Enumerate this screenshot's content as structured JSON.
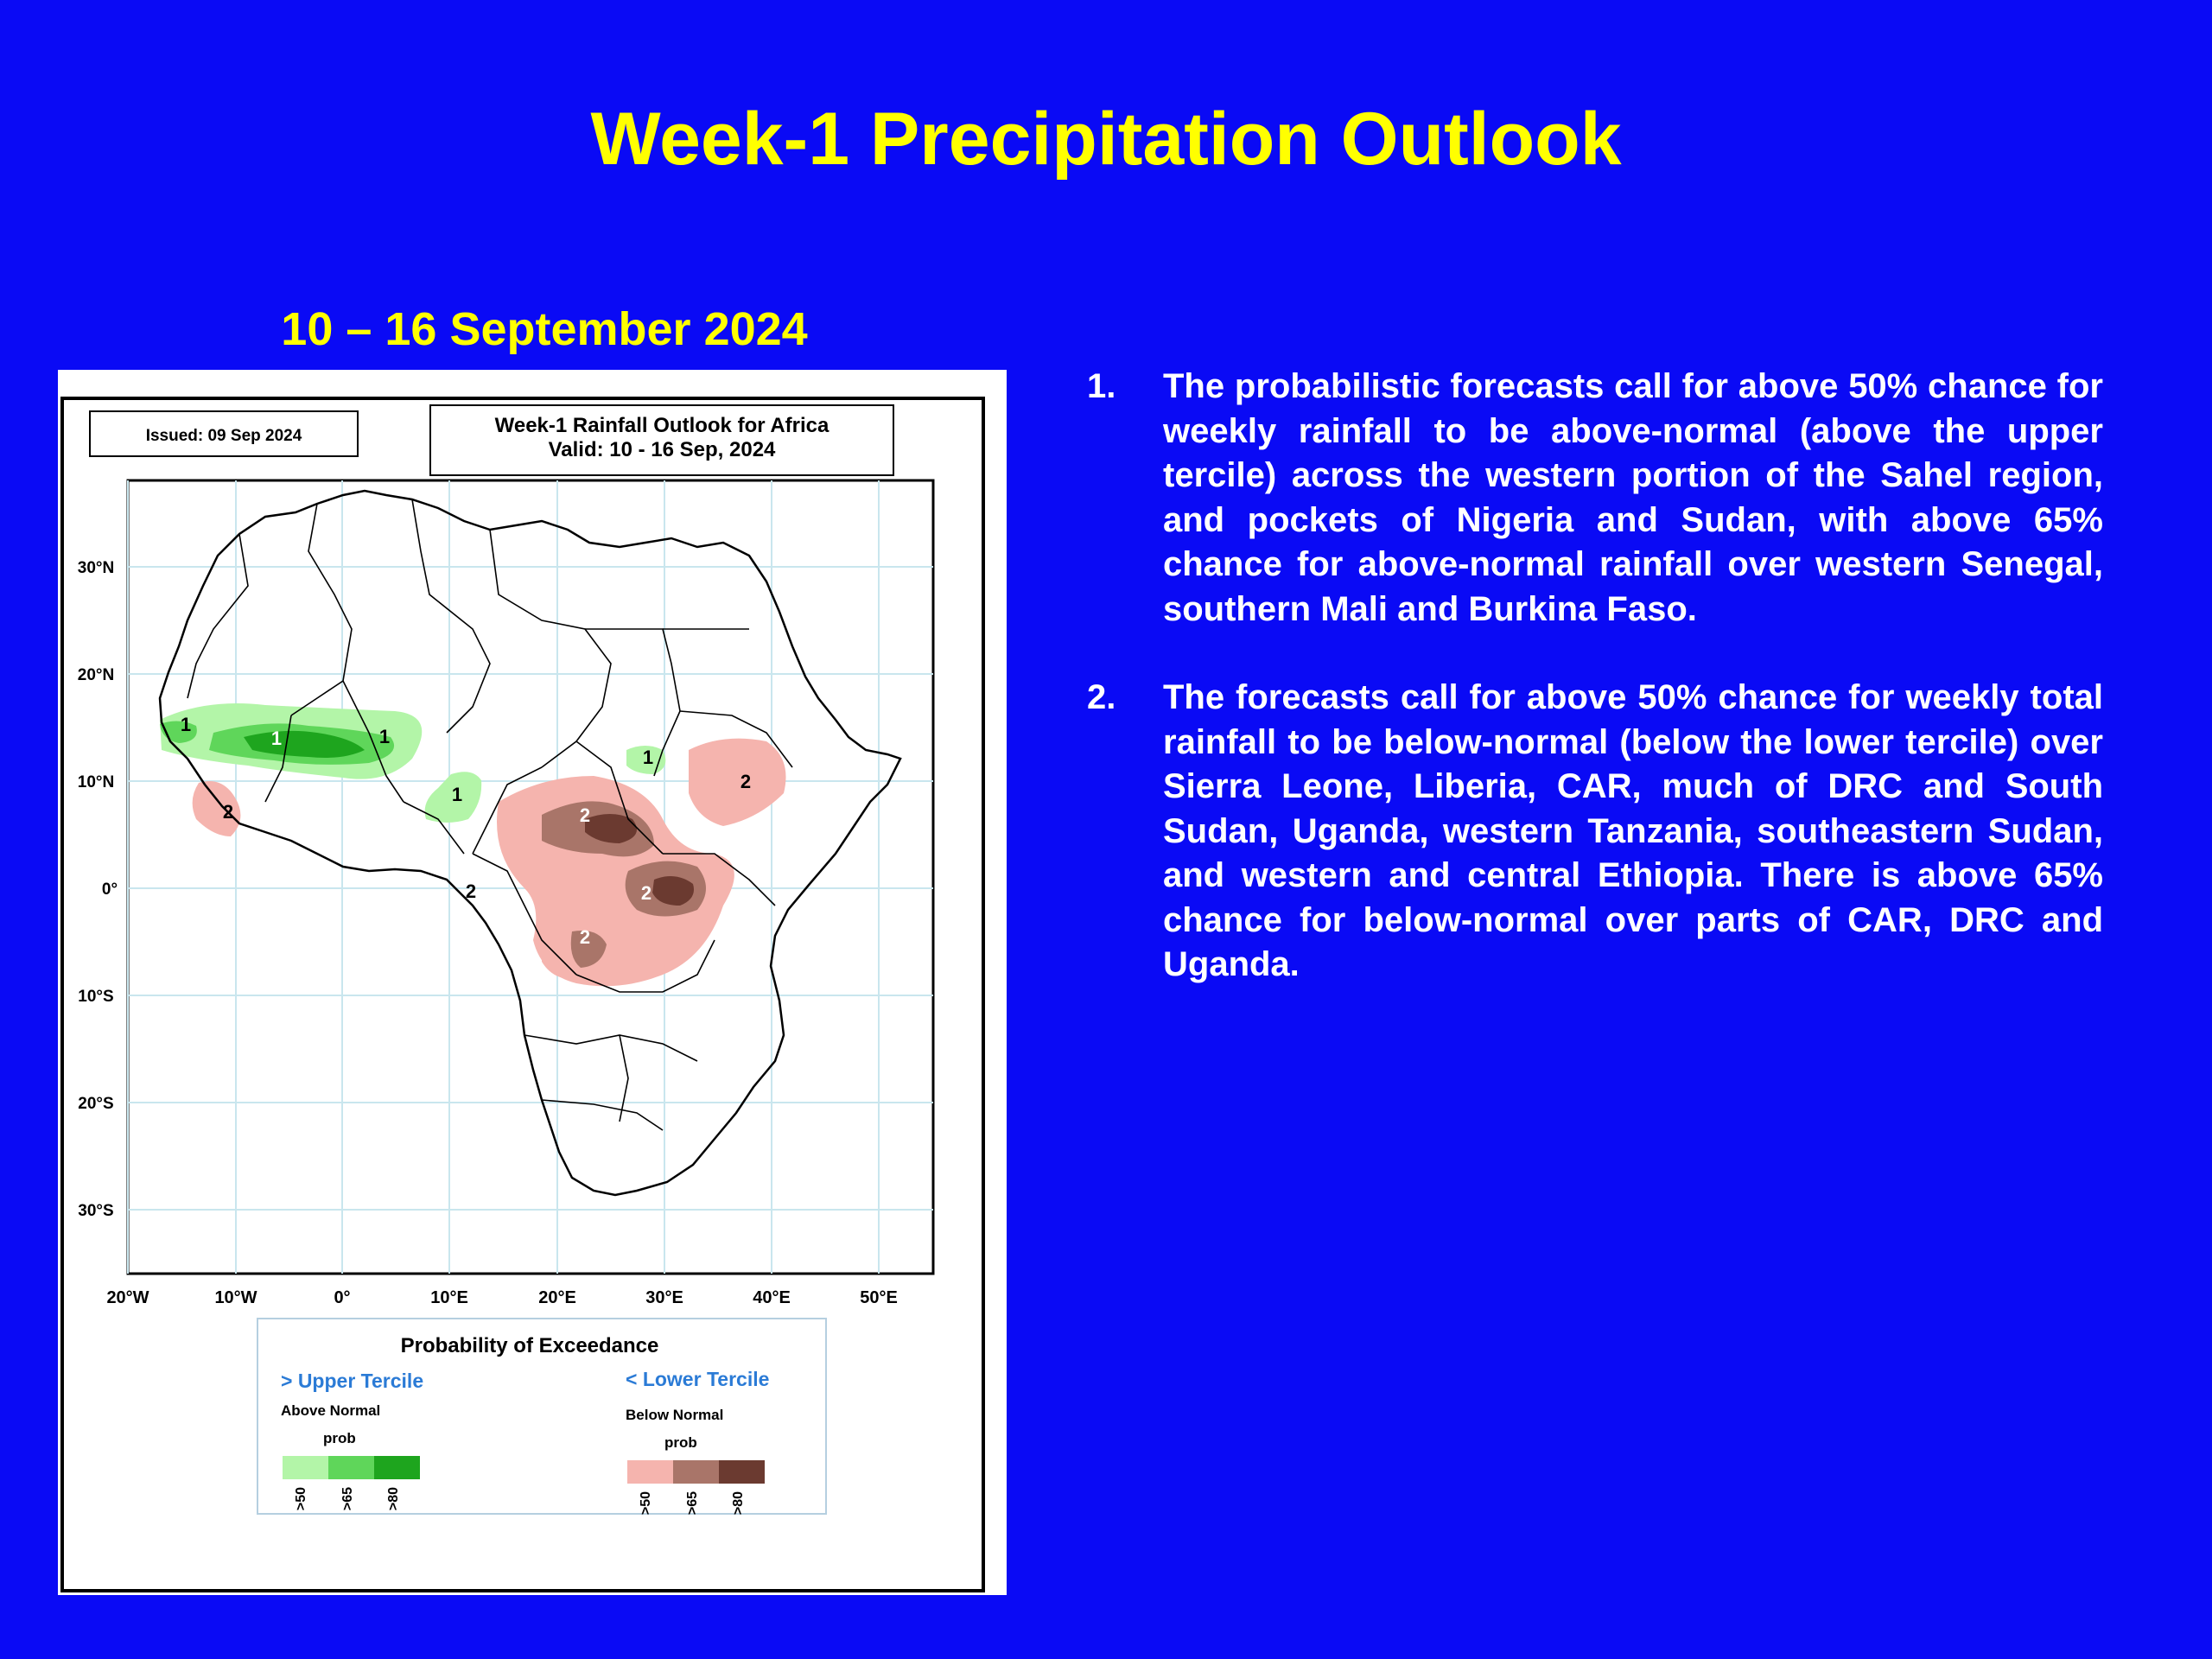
{
  "slide": {
    "title": "Week-1 Precipitation Outlook",
    "date_range": "10 – 16 September 2024"
  },
  "map": {
    "issued": "Issued: 09 Sep 2024",
    "header_line1": "Week-1 Rainfall Outlook for Africa",
    "header_line2": "Valid: 10 - 16 Sep, 2024",
    "lat_labels": [
      "30°N",
      "20°N",
      "10°N",
      "0°",
      "10°S",
      "20°S",
      "30°S"
    ],
    "lon_labels": [
      "20°W",
      "10°W",
      "0°",
      "10°E",
      "20°E",
      "30°E",
      "40°E",
      "50°E"
    ],
    "region_labels": [
      "1",
      "1",
      "1",
      "1",
      "1",
      "2",
      "2",
      "2",
      "2",
      "2",
      "2"
    ],
    "colors": {
      "above_50": "#b3f5a8",
      "above_65": "#5fd65a",
      "above_80": "#1ea51e",
      "below_50": "#f5b4ae",
      "below_65": "#a97569",
      "below_80": "#6b3a30"
    },
    "legend": {
      "title": "Probability of Exceedance",
      "upper_title": "> Upper Tercile",
      "upper_sub": "Above Normal",
      "upper_prob": "prob",
      "lower_title": "< Lower Tercile",
      "lower_sub": "Below Normal",
      "lower_prob": "prob",
      "thresholds": [
        ">50",
        ">65",
        ">80"
      ]
    }
  },
  "notes": [
    {
      "number": "1.",
      "text": "The probabilistic forecasts call for above 50% chance for weekly rainfall to be above-normal (above the upper tercile) across the western portion of the Sahel region, and pockets of Nigeria and Sudan, with above 65% chance for above-normal rainfall over western Senegal, southern Mali and Burkina Faso."
    },
    {
      "number": "2.",
      "text": "The forecasts call for above 50% chance for weekly total rainfall to be below-normal (below the lower tercile) over Sierra Leone, Liberia, CAR, much of DRC and South Sudan, Uganda, western Tanzania, southeastern Sudan, and western and central Ethiopia. There is above 65% chance for below-normal over parts of CAR, DRC and Uganda."
    }
  ]
}
